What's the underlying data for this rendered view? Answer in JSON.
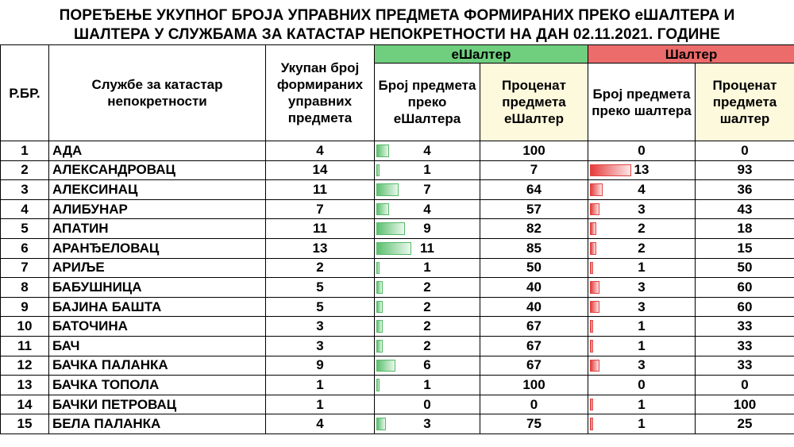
{
  "title_line1": "ПОРЕЂЕЊЕ УКУПНОГ БРОЈА УПРАВНИХ ПРЕДМЕТА ФОРМИРАНИХ ПРЕКО еШАЛТЕРА И",
  "title_line2": "ШАЛТЕРА У СЛУЖБАМА ЗА КАТАСТАР НЕПОКРЕТНОСТИ НА ДАН 02.11.2021. ГОДИНЕ",
  "headers": {
    "rbr": "Р.БР.",
    "office": "Службе за катастар непокретности",
    "total": "Укупан број формираних управних предмета",
    "group_e": "еШалтер",
    "group_s": "Шалтер",
    "e_count": "Број предмета преко еШалтера",
    "e_pct": "Проценат предмета еШалтер",
    "s_count": "Број предмета преко шалтера",
    "s_pct": "Проценат предмета шалтер"
  },
  "colors": {
    "green": "#6fcf7f",
    "red": "#ec6b6b",
    "cream": "#fdf9dc"
  },
  "bar_max": 13,
  "rows": [
    {
      "no": "1",
      "name": "АДА",
      "total": "4",
      "e": "4",
      "ep": "100",
      "s": "0",
      "sp": "0"
    },
    {
      "no": "2",
      "name": "АЛЕКСАНДРОВАЦ",
      "total": "14",
      "e": "1",
      "ep": "7",
      "s": "13",
      "sp": "93"
    },
    {
      "no": "3",
      "name": "АЛЕКСИНАЦ",
      "total": "11",
      "e": "7",
      "ep": "64",
      "s": "4",
      "sp": "36"
    },
    {
      "no": "4",
      "name": "АЛИБУНАР",
      "total": "7",
      "e": "4",
      "ep": "57",
      "s": "3",
      "sp": "43"
    },
    {
      "no": "5",
      "name": "АПАТИН",
      "total": "11",
      "e": "9",
      "ep": "82",
      "s": "2",
      "sp": "18"
    },
    {
      "no": "6",
      "name": "АРАНЂЕЛОВАЦ",
      "total": "13",
      "e": "11",
      "ep": "85",
      "s": "2",
      "sp": "15"
    },
    {
      "no": "7",
      "name": "АРИЉЕ",
      "total": "2",
      "e": "1",
      "ep": "50",
      "s": "1",
      "sp": "50"
    },
    {
      "no": "8",
      "name": "БАБУШНИЦА",
      "total": "5",
      "e": "2",
      "ep": "40",
      "s": "3",
      "sp": "60"
    },
    {
      "no": "9",
      "name": "БАЈИНА БАШТА",
      "total": "5",
      "e": "2",
      "ep": "40",
      "s": "3",
      "sp": "60"
    },
    {
      "no": "10",
      "name": "БАТОЧИНА",
      "total": "3",
      "e": "2",
      "ep": "67",
      "s": "1",
      "sp": "33"
    },
    {
      "no": "11",
      "name": "БАЧ",
      "total": "3",
      "e": "2",
      "ep": "67",
      "s": "1",
      "sp": "33"
    },
    {
      "no": "12",
      "name": "БАЧКА ПАЛАНКА",
      "total": "9",
      "e": "6",
      "ep": "67",
      "s": "3",
      "sp": "33"
    },
    {
      "no": "13",
      "name": "БАЧКА ТОПОЛА",
      "total": "1",
      "e": "1",
      "ep": "100",
      "s": "0",
      "sp": "0"
    },
    {
      "no": "14",
      "name": "БАЧКИ ПЕТРОВАЦ",
      "total": "1",
      "e": "0",
      "ep": "0",
      "s": "1",
      "sp": "100"
    },
    {
      "no": "15",
      "name": "БЕЛА ПАЛАНКА",
      "total": "4",
      "e": "3",
      "ep": "75",
      "s": "1",
      "sp": "25"
    }
  ]
}
